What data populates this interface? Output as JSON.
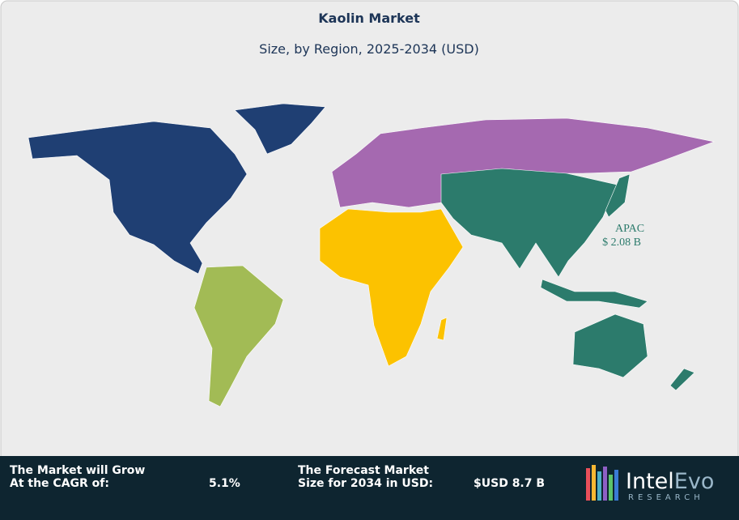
{
  "header": {
    "title": "Kaolin Market",
    "subtitle": "Size, by Region, 2025-2034 (USD)"
  },
  "map": {
    "regions": [
      {
        "name": "APAC",
        "value_label": "$ 2.08 B"
      }
    ]
  },
  "footer": {
    "cagr_label": [
      "The Market will Grow",
      "At the CAGR of:"
    ],
    "cagr_value": "5.1%",
    "forecast_label": [
      "The Forecast Market",
      "Size for 2034 in USD:"
    ],
    "forecast_value": "$USD 8.7 B"
  },
  "logo": {
    "name_a": "Intel",
    "name_b": "Evo",
    "tagline": "RESEARCH"
  }
}
